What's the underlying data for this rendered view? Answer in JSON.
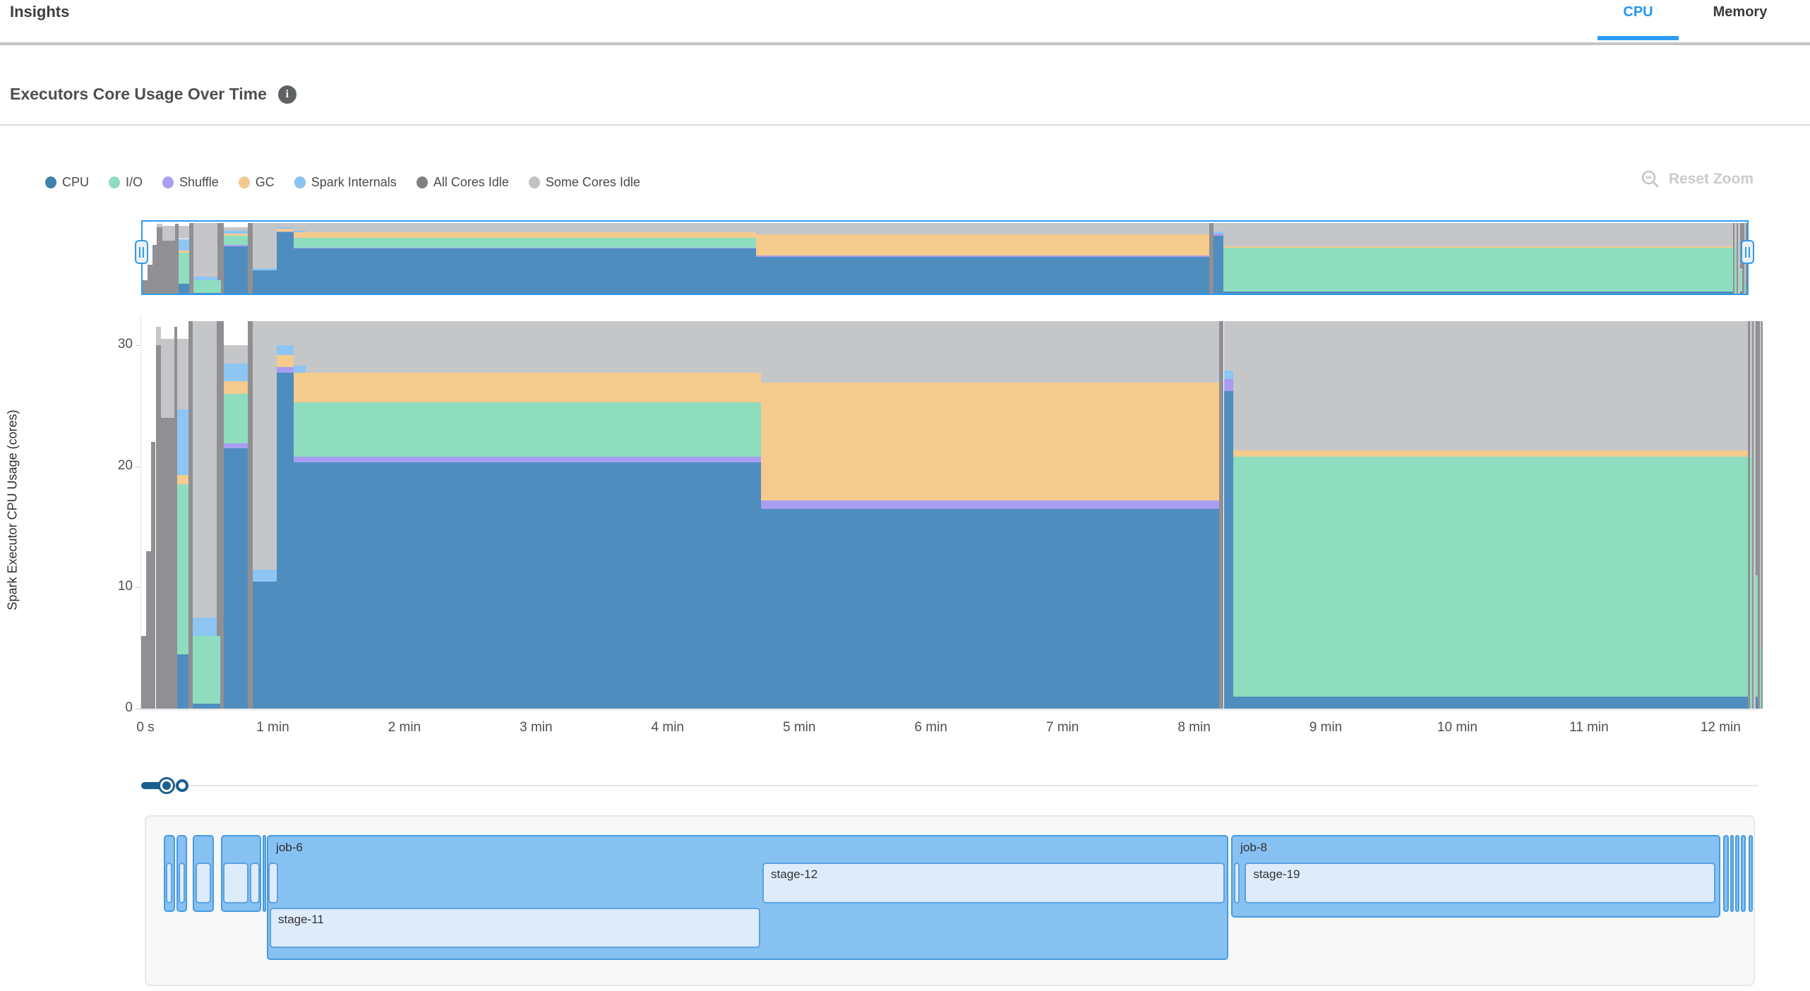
{
  "header": {
    "title": "Insights",
    "tabs": [
      {
        "label": "CPU",
        "active": true
      },
      {
        "label": "Memory",
        "active": false
      }
    ]
  },
  "section": {
    "title": "Executors Core Usage Over Time",
    "info_icon_glyph": "i"
  },
  "toolbar": {
    "reset_zoom_label": "Reset Zoom"
  },
  "legend": [
    {
      "key": "cpu",
      "label": "CPU",
      "color": "#4083ad"
    },
    {
      "key": "io",
      "label": "I/O",
      "color": "#8fdcc0"
    },
    {
      "key": "shuffle",
      "label": "Shuffle",
      "color": "#a99ff0"
    },
    {
      "key": "gc",
      "label": "GC",
      "color": "#f2c98f"
    },
    {
      "key": "spark",
      "label": "Spark Internals",
      "color": "#8ac2f0"
    },
    {
      "key": "allIdle",
      "label": "All Cores Idle",
      "color": "#808080"
    },
    {
      "key": "someIdle",
      "label": "Some Cores Idle",
      "color": "#c2c2c2"
    }
  ],
  "chart_data": {
    "type": "area",
    "title": "Executors Core Usage Over Time",
    "xlabel": "",
    "ylabel": "Spark Executor CPU Usage (cores)",
    "ylim": [
      0,
      32.5
    ],
    "yticks": [
      0,
      10,
      20,
      30
    ],
    "t_max": 12.32,
    "xticks": [
      {
        "t": 0,
        "label": "0 s"
      },
      {
        "t": 1,
        "label": "1 min"
      },
      {
        "t": 2,
        "label": "2 min"
      },
      {
        "t": 3,
        "label": "3 min"
      },
      {
        "t": 4,
        "label": "4 min"
      },
      {
        "t": 5,
        "label": "5 min"
      },
      {
        "t": 6,
        "label": "6 min"
      },
      {
        "t": 7,
        "label": "7 min"
      },
      {
        "t": 8,
        "label": "8 min"
      },
      {
        "t": 9,
        "label": "9 min"
      },
      {
        "t": 10,
        "label": "10 min"
      },
      {
        "t": 11,
        "label": "11 min"
      },
      {
        "t": 12,
        "label": "12 min"
      }
    ],
    "series_colors": {
      "cpu": "#4f8dbe",
      "io": "#8eddbf",
      "shuffle": "#a89df0",
      "gc": "#f5ca8d",
      "spark": "#8dc5f3",
      "allIdle": "#909094",
      "someIdle": "#c5c6c8"
    },
    "segments": [
      {
        "t0": 0.0,
        "t1": 0.04,
        "stack": [
          [
            "allIdle",
            6
          ]
        ]
      },
      {
        "t0": 0.04,
        "t1": 0.075,
        "stack": [
          [
            "allIdle",
            13
          ]
        ]
      },
      {
        "t0": 0.075,
        "t1": 0.11,
        "stack": [
          [
            "allIdle",
            22
          ]
        ]
      },
      {
        "t0": 0.11,
        "t1": 0.15,
        "stack": [
          [
            "allIdle",
            30
          ],
          [
            "someIdle",
            1.5
          ]
        ]
      },
      {
        "t0": 0.15,
        "t1": 0.25,
        "stack": [
          [
            "allIdle",
            24
          ],
          [
            "someIdle",
            6.5
          ]
        ]
      },
      {
        "t0": 0.25,
        "t1": 0.275,
        "stack": [
          [
            "allIdle",
            31.5
          ]
        ]
      },
      {
        "t0": 0.275,
        "t1": 0.36,
        "stack": [
          [
            "cpu",
            4.5
          ],
          [
            "io",
            14
          ],
          [
            "gc",
            0.8
          ],
          [
            "spark",
            5.4
          ],
          [
            "someIdle",
            5.8
          ]
        ]
      },
      {
        "t0": 0.36,
        "t1": 0.39,
        "stack": [
          [
            "allIdle",
            32
          ]
        ]
      },
      {
        "t0": 0.39,
        "t1": 0.575,
        "stack": [
          [
            "cpu",
            0.4
          ],
          [
            "io",
            5.6
          ],
          [
            "spark",
            1.5
          ],
          [
            "someIdle",
            24.5
          ]
        ]
      },
      {
        "t0": 0.575,
        "t1": 0.6,
        "stack": [
          [
            "cpu",
            0.4
          ],
          [
            "io",
            5.6
          ],
          [
            "allIdle",
            26
          ]
        ]
      },
      {
        "t0": 0.6,
        "t1": 0.625,
        "stack": [
          [
            "allIdle",
            32
          ]
        ]
      },
      {
        "t0": 0.625,
        "t1": 0.81,
        "stack": [
          [
            "cpu",
            21.5
          ],
          [
            "shuffle",
            0.4
          ],
          [
            "io",
            4.1
          ],
          [
            "gc",
            1.0
          ],
          [
            "spark",
            1.5
          ],
          [
            "someIdle",
            1.5
          ]
        ]
      },
      {
        "t0": 0.81,
        "t1": 0.845,
        "stack": [
          [
            "allIdle",
            32
          ]
        ]
      },
      {
        "t0": 0.845,
        "t1": 1.03,
        "stack": [
          [
            "cpu",
            10.5
          ],
          [
            "spark",
            1.0
          ],
          [
            "someIdle",
            20.5
          ]
        ]
      },
      {
        "t0": 1.03,
        "t1": 1.16,
        "stack": [
          [
            "cpu",
            27.7
          ],
          [
            "shuffle",
            0.5
          ],
          [
            "gc",
            1.0
          ],
          [
            "spark",
            0.8
          ],
          [
            "someIdle",
            2.0
          ]
        ]
      },
      {
        "t0": 1.16,
        "t1": 1.25,
        "stack": [
          [
            "cpu",
            20.3
          ],
          [
            "shuffle",
            0.5
          ],
          [
            "io",
            4.5
          ],
          [
            "gc",
            2.4
          ],
          [
            "spark",
            0.6
          ],
          [
            "someIdle",
            3.7
          ]
        ]
      },
      {
        "t0": 1.25,
        "t1": 4.71,
        "stack": [
          [
            "cpu",
            20.3
          ],
          [
            "shuffle",
            0.5
          ],
          [
            "io",
            4.5
          ],
          [
            "gc",
            2.4
          ],
          [
            "someIdle",
            4.3
          ]
        ]
      },
      {
        "t0": 4.71,
        "t1": 8.19,
        "stack": [
          [
            "cpu",
            16.5
          ],
          [
            "shuffle",
            0.7
          ],
          [
            "gc",
            9.7
          ],
          [
            "someIdle",
            5.1
          ]
        ]
      },
      {
        "t0": 8.19,
        "t1": 8.225,
        "stack": [
          [
            "allIdle",
            32
          ]
        ]
      },
      {
        "t0": 8.225,
        "t1": 8.3,
        "stack": [
          [
            "cpu",
            26.2
          ],
          [
            "shuffle",
            1.0
          ],
          [
            "spark",
            0.7
          ],
          [
            "someIdle",
            4.1
          ]
        ]
      },
      {
        "t0": 8.3,
        "t1": 12.21,
        "stack": [
          [
            "cpu",
            1.0
          ],
          [
            "io",
            19.8
          ],
          [
            "gc",
            0.5
          ],
          [
            "someIdle",
            10.7
          ]
        ]
      },
      {
        "t0": 12.21,
        "t1": 12.225,
        "stack": [
          [
            "allIdle",
            32
          ]
        ]
      },
      {
        "t0": 12.225,
        "t1": 12.24,
        "stack": [
          [
            "io",
            20.8
          ],
          [
            "someIdle",
            11.2
          ]
        ]
      },
      {
        "t0": 12.24,
        "t1": 12.252,
        "stack": [
          [
            "allIdle",
            32
          ]
        ]
      },
      {
        "t0": 12.252,
        "t1": 12.266,
        "stack": [
          [
            "someIdle",
            32
          ]
        ]
      },
      {
        "t0": 12.266,
        "t1": 12.282,
        "stack": [
          [
            "cpu",
            1
          ],
          [
            "io",
            10
          ],
          [
            "allIdle",
            21
          ]
        ]
      },
      {
        "t0": 12.282,
        "t1": 12.296,
        "stack": [
          [
            "allIdle",
            32
          ]
        ]
      },
      {
        "t0": 12.296,
        "t1": 12.31,
        "stack": [
          [
            "io",
            5
          ],
          [
            "someIdle",
            27
          ]
        ]
      },
      {
        "t0": 12.31,
        "t1": 12.32,
        "stack": [
          [
            "allIdle",
            32
          ]
        ]
      }
    ]
  },
  "jobs_timeline": {
    "jobs": [
      {
        "label": "",
        "t0": 0.17,
        "t1": 0.258,
        "rows": 1,
        "stages": [
          {
            "label": "",
            "row": 1,
            "t0": 0.186,
            "t1": 0.238
          }
        ]
      },
      {
        "label": "",
        "t0": 0.268,
        "t1": 0.35,
        "rows": 1,
        "stages": [
          {
            "label": "",
            "row": 1,
            "t0": 0.284,
            "t1": 0.332
          }
        ]
      },
      {
        "label": "",
        "t0": 0.392,
        "t1": 0.552,
        "rows": 1,
        "stages": [
          {
            "label": "",
            "row": 1,
            "t0": 0.413,
            "t1": 0.531
          }
        ]
      },
      {
        "label": "",
        "t0": 0.606,
        "t1": 0.912,
        "rows": 1,
        "stages": [
          {
            "label": "",
            "row": 1,
            "t0": 0.622,
            "t1": 0.816
          },
          {
            "label": "",
            "row": 1,
            "t0": 0.826,
            "t1": 0.902
          }
        ]
      },
      {
        "label": "",
        "t0": 0.922,
        "t1": 0.945,
        "rows": 1,
        "stages": []
      },
      {
        "label": "job-6",
        "t0": 0.955,
        "t1": 8.26,
        "rows": 2,
        "stages": [
          {
            "label": "",
            "row": 1,
            "t0": 0.968,
            "t1": 1.042
          },
          {
            "label": "stage-12",
            "row": 1,
            "t0": 4.72,
            "t1": 8.232
          },
          {
            "label": "stage-11",
            "row": 2,
            "t0": 0.976,
            "t1": 4.703
          }
        ]
      },
      {
        "label": "job-8",
        "t0": 8.282,
        "t1": 11.998,
        "rows": 1,
        "stages": [
          {
            "label": "",
            "row": 1,
            "t0": 8.305,
            "t1": 8.345
          },
          {
            "label": "stage-19",
            "row": 1,
            "t0": 8.385,
            "t1": 11.962
          }
        ]
      },
      {
        "label": "",
        "t0": 12.022,
        "t1": 12.062,
        "rows": 1,
        "stages": []
      },
      {
        "label": "",
        "t0": 12.075,
        "t1": 12.102,
        "rows": 1,
        "stages": []
      },
      {
        "label": "",
        "t0": 12.112,
        "t1": 12.142,
        "rows": 1,
        "stages": []
      },
      {
        "label": "",
        "t0": 12.152,
        "t1": 12.192,
        "rows": 1,
        "stages": []
      },
      {
        "label": "",
        "t0": 12.215,
        "t1": 12.245,
        "rows": 1,
        "stages": []
      }
    ]
  }
}
